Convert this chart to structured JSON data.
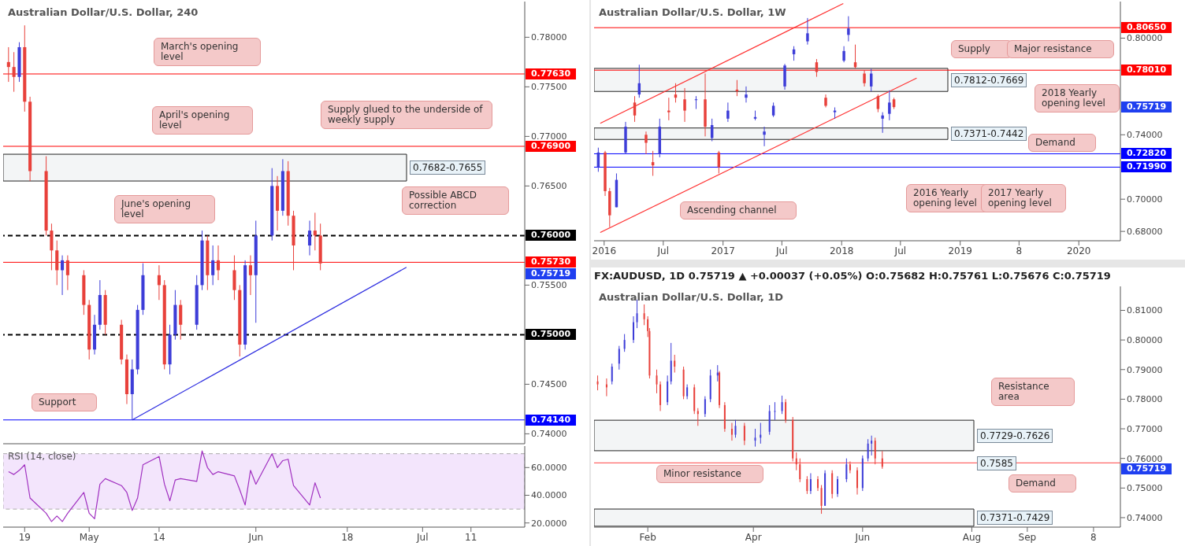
{
  "chart_data": [
    {
      "type": "candlestick",
      "title": "Australian Dollar/U.S. Dollar, 240",
      "tick_labels": "y",
      "x": [
        "2018-04-16",
        "2018-04-17",
        "2018-04-18",
        "2018-04-19",
        "2018-04-20",
        "2018-04-23",
        "2018-04-24",
        "2018-04-25",
        "2018-04-26",
        "2018-04-27",
        "2018-04-30",
        "2018-05-01",
        "2018-05-02",
        "2018-05-03",
        "2018-05-04",
        "2018-05-07",
        "2018-05-08",
        "2018-05-09",
        "2018-05-10",
        "2018-05-11",
        "2018-05-14",
        "2018-05-15",
        "2018-05-16",
        "2018-05-17",
        "2018-05-18",
        "2018-05-21",
        "2018-05-22",
        "2018-05-23",
        "2018-05-24",
        "2018-05-25",
        "2018-05-28",
        "2018-05-29",
        "2018-05-30",
        "2018-05-31",
        "2018-06-01",
        "2018-06-04",
        "2018-06-05",
        "2018-06-06",
        "2018-06-07",
        "2018-06-08",
        "2018-06-11",
        "2018-06-12",
        "2018-06-13"
      ],
      "ohlc": [
        [
          0.7775,
          0.779,
          0.7755,
          0.777
        ],
        [
          0.777,
          0.7785,
          0.7745,
          0.776
        ],
        [
          0.776,
          0.7795,
          0.7755,
          0.779
        ],
        [
          0.779,
          0.7812,
          0.7725,
          0.7735
        ],
        [
          0.7735,
          0.774,
          0.7655,
          0.7665
        ],
        [
          0.7665,
          0.768,
          0.76,
          0.7605
        ],
        [
          0.7605,
          0.7612,
          0.7565,
          0.7585
        ],
        [
          0.7585,
          0.7595,
          0.755,
          0.7565
        ],
        [
          0.7565,
          0.758,
          0.754,
          0.7575
        ],
        [
          0.7575,
          0.758,
          0.7545,
          0.756
        ],
        [
          0.756,
          0.7565,
          0.752,
          0.753
        ],
        [
          0.753,
          0.7535,
          0.7475,
          0.7485
        ],
        [
          0.7485,
          0.752,
          0.748,
          0.751
        ],
        [
          0.751,
          0.7555,
          0.7505,
          0.754
        ],
        [
          0.754,
          0.7545,
          0.75,
          0.751
        ],
        [
          0.751,
          0.7515,
          0.747,
          0.7475
        ],
        [
          0.7475,
          0.748,
          0.743,
          0.744
        ],
        [
          0.744,
          0.7475,
          0.7414,
          0.7465
        ],
        [
          0.7465,
          0.753,
          0.746,
          0.7525
        ],
        [
          0.7525,
          0.7572,
          0.752,
          0.756
        ],
        [
          0.756,
          0.757,
          0.7535,
          0.755
        ],
        [
          0.755,
          0.7555,
          0.7465,
          0.747
        ],
        [
          0.747,
          0.751,
          0.746,
          0.75
        ],
        [
          0.75,
          0.7545,
          0.7495,
          0.753
        ],
        [
          0.753,
          0.7535,
          0.7495,
          0.751
        ],
        [
          0.751,
          0.756,
          0.7505,
          0.755
        ],
        [
          0.755,
          0.7605,
          0.7545,
          0.7595
        ],
        [
          0.7595,
          0.76,
          0.7545,
          0.756
        ],
        [
          0.756,
          0.759,
          0.755,
          0.7575
        ],
        [
          0.7575,
          0.759,
          0.7555,
          0.7565
        ],
        [
          0.7565,
          0.758,
          0.7535,
          0.7545
        ],
        [
          0.7545,
          0.755,
          0.7478,
          0.749
        ],
        [
          0.749,
          0.7575,
          0.7485,
          0.757
        ],
        [
          0.757,
          0.758,
          0.754,
          0.756
        ],
        [
          0.756,
          0.7615,
          0.7512,
          0.76
        ],
        [
          0.76,
          0.7668,
          0.7595,
          0.765
        ],
        [
          0.765,
          0.766,
          0.7605,
          0.7625
        ],
        [
          0.7625,
          0.7677,
          0.762,
          0.7665
        ],
        [
          0.7665,
          0.7675,
          0.761,
          0.762
        ],
        [
          0.762,
          0.7625,
          0.7565,
          0.759
        ],
        [
          0.759,
          0.7615,
          0.758,
          0.7605
        ],
        [
          0.7605,
          0.7623,
          0.7585,
          0.76
        ],
        [
          0.76,
          0.7612,
          0.7565,
          0.75719
        ]
      ],
      "xlim": [
        "2018-04-15",
        "2018-07-21"
      ],
      "ylim": [
        0.739,
        0.7836
      ],
      "yticks": [
        {
          "value": 0.74,
          "label": "0.74000"
        },
        {
          "value": 0.745,
          "label": "0.74500"
        },
        {
          "value": 0.755,
          "label": "0.75500"
        },
        {
          "value": 0.765,
          "label": "0.76500"
        },
        {
          "value": 0.77,
          "label": "0.77000"
        },
        {
          "value": 0.775,
          "label": "0.77500"
        },
        {
          "value": 0.78,
          "label": "0.78000"
        }
      ],
      "series": [
        {
          "type": "line",
          "x": [
            "2018-05-09",
            "2018-06-29"
          ],
          "values": [
            0.7414,
            0.7568
          ],
          "color": "#2f2fe0"
        }
      ],
      "ref_lines": [
        {
          "axis": "y",
          "value": 0.7763,
          "label": "0.77630",
          "color": "#ff0000"
        },
        {
          "axis": "y",
          "value": 0.769,
          "label": "0.76900",
          "color": "#ff0000"
        },
        {
          "axis": "y",
          "value": 0.76,
          "label": "0.76000",
          "color": "#000000",
          "line_style": "dashed"
        },
        {
          "axis": "y",
          "value": 0.7573,
          "label": "0.75730",
          "color": "#ff0000"
        },
        {
          "axis": "y",
          "value": 0.75,
          "label": "0.75000",
          "color": "#000000",
          "line_style": "dashed"
        },
        {
          "axis": "y",
          "value": 0.7414,
          "label": "0.74140",
          "color": "#0000ff"
        }
      ],
      "bands": [
        {
          "axis": "y",
          "from": 0.7655,
          "to": 0.7682,
          "label": "0.7682-0.7655"
        }
      ],
      "annotations": [
        "March's opening level",
        "April's opening level",
        "Supply glued to the underside of weekly supply",
        "June's opening level",
        "Possible ABCD correction",
        "Support",
        "0.75719"
      ]
    },
    {
      "type": "line",
      "title": "RSI (14, close)",
      "marker": "none",
      "color": "#a030c0",
      "x": [
        "2018-04-16",
        "2018-04-17",
        "2018-04-18",
        "2018-04-19",
        "2018-04-20",
        "2018-04-23",
        "2018-04-24",
        "2018-04-25",
        "2018-04-26",
        "2018-04-27",
        "2018-04-30",
        "2018-05-01",
        "2018-05-02",
        "2018-05-03",
        "2018-05-04",
        "2018-05-07",
        "2018-05-08",
        "2018-05-09",
        "2018-05-10",
        "2018-05-11",
        "2018-05-14",
        "2018-05-15",
        "2018-05-16",
        "2018-05-17",
        "2018-05-18",
        "2018-05-21",
        "2018-05-22",
        "2018-05-23",
        "2018-05-24",
        "2018-05-25",
        "2018-05-28",
        "2018-05-29",
        "2018-05-30",
        "2018-05-31",
        "2018-06-01",
        "2018-06-04",
        "2018-06-05",
        "2018-06-06",
        "2018-06-07",
        "2018-06-08",
        "2018-06-11",
        "2018-06-12",
        "2018-06-13"
      ],
      "values": [
        57,
        55,
        58,
        62,
        38,
        27,
        21,
        25,
        21,
        27,
        42,
        27,
        23,
        48,
        52,
        47,
        42,
        29,
        38,
        62,
        68,
        48,
        36,
        51,
        52,
        50,
        72,
        60,
        55,
        57,
        54,
        44,
        33,
        58,
        48,
        70,
        60,
        65,
        66,
        47,
        33,
        49,
        38
      ],
      "xlim": [
        "2018-04-15",
        "2018-07-21"
      ],
      "ylim": [
        17,
        75.5
      ],
      "xticks": [
        {
          "value": "2018-04-19",
          "label": "19"
        },
        {
          "value": "2018-05-01",
          "label": "May"
        },
        {
          "value": "2018-05-14",
          "label": "14"
        },
        {
          "value": "2018-06-01",
          "label": "Jun"
        },
        {
          "value": "2018-06-18",
          "label": "18"
        },
        {
          "value": "2018-07-02",
          "label": "Jul"
        },
        {
          "value": "2018-07-11",
          "label": "11"
        }
      ],
      "yticks": [
        {
          "value": 20,
          "label": "20.0000"
        },
        {
          "value": 40,
          "label": "40.0000"
        },
        {
          "value": 60,
          "label": "60.0000"
        }
      ],
      "bands": [
        {
          "axis": "y",
          "from": 30,
          "to": 70,
          "color": "#f3e5fc"
        }
      ]
    },
    {
      "type": "candlestick",
      "title": "Australian Dollar/U.S. Dollar, 1W",
      "x": [
        "2015-12-14",
        "2016-01-04",
        "2016-01-18",
        "2016-02-08",
        "2016-03-07",
        "2016-04-04",
        "2016-04-18",
        "2016-05-09",
        "2016-05-30",
        "2016-06-20",
        "2016-07-18",
        "2016-08-08",
        "2016-09-05",
        "2016-10-10",
        "2016-11-07",
        "2016-11-28",
        "2016-12-19",
        "2017-01-16",
        "2017-02-13",
        "2017-03-13",
        "2017-04-10",
        "2017-05-08",
        "2017-06-05",
        "2017-07-10",
        "2017-08-07",
        "2017-09-18",
        "2017-10-16",
        "2017-11-13",
        "2017-12-11",
        "2018-01-08",
        "2018-01-22",
        "2018-02-12",
        "2018-03-12",
        "2018-04-02",
        "2018-04-23",
        "2018-05-07",
        "2018-05-28",
        "2018-06-11"
      ],
      "ohlc": [
        [
          0.72,
          0.732,
          0.717,
          0.729
        ],
        [
          0.729,
          0.73,
          0.702,
          0.705
        ],
        [
          0.705,
          0.707,
          0.6827,
          0.69
        ],
        [
          0.695,
          0.716,
          0.695,
          0.712
        ],
        [
          0.729,
          0.748,
          0.728,
          0.745
        ],
        [
          0.76,
          0.764,
          0.748,
          0.752
        ],
        [
          0.765,
          0.7835,
          0.763,
          0.772
        ],
        [
          0.74,
          0.742,
          0.728,
          0.735
        ],
        [
          0.723,
          0.73,
          0.7145,
          0.721
        ],
        [
          0.728,
          0.75,
          0.726,
          0.745
        ],
        [
          0.755,
          0.763,
          0.749,
          0.754
        ],
        [
          0.765,
          0.772,
          0.76,
          0.763
        ],
        [
          0.762,
          0.769,
          0.748,
          0.755
        ],
        [
          0.762,
          0.764,
          0.756,
          0.762
        ],
        [
          0.762,
          0.778,
          0.739,
          0.745
        ],
        [
          0.738,
          0.75,
          0.736,
          0.746
        ],
        [
          0.729,
          0.73,
          0.716,
          0.72
        ],
        [
          0.75,
          0.76,
          0.748,
          0.755
        ],
        [
          0.768,
          0.774,
          0.764,
          0.767
        ],
        [
          0.763,
          0.77,
          0.76,
          0.765
        ],
        [
          0.75,
          0.755,
          0.749,
          0.751
        ],
        [
          0.74,
          0.745,
          0.7329,
          0.742
        ],
        [
          0.752,
          0.76,
          0.751,
          0.758
        ],
        [
          0.77,
          0.784,
          0.768,
          0.783
        ],
        [
          0.79,
          0.795,
          0.786,
          0.793
        ],
        [
          0.798,
          0.8125,
          0.796,
          0.803
        ],
        [
          0.785,
          0.787,
          0.776,
          0.779
        ],
        [
          0.763,
          0.765,
          0.757,
          0.758
        ],
        [
          0.754,
          0.757,
          0.75,
          0.755
        ],
        [
          0.786,
          0.795,
          0.785,
          0.792
        ],
        [
          0.802,
          0.8136,
          0.798,
          0.806
        ],
        [
          0.785,
          0.796,
          0.781,
          0.782
        ],
        [
          0.778,
          0.78,
          0.77,
          0.772
        ],
        [
          0.77,
          0.781,
          0.767,
          0.778
        ],
        [
          0.764,
          0.765,
          0.754,
          0.756
        ],
        [
          0.75,
          0.754,
          0.7412,
          0.752
        ],
        [
          0.753,
          0.7676,
          0.749,
          0.76
        ],
        [
          0.762,
          0.763,
          0.756,
          0.75719
        ]
      ],
      "xlim": [
        "2015-12-01",
        "2020-05-08"
      ],
      "ylim": [
        0.6742,
        0.8227
      ],
      "xticks": [
        {
          "value": "2016-01-01",
          "label": "2016"
        },
        {
          "value": "2016-07-01",
          "label": "Jul"
        },
        {
          "value": "2017-01-01",
          "label": "2017"
        },
        {
          "value": "2017-07-01",
          "label": "Jul"
        },
        {
          "value": "2018-01-01",
          "label": "2018"
        },
        {
          "value": "2018-07-01",
          "label": "Jul"
        },
        {
          "value": "2019-01-01",
          "label": "2019"
        },
        {
          "value": "2019-07-01",
          "label": "8"
        },
        {
          "value": "2020-01-01",
          "label": "2020"
        }
      ],
      "yticks": [
        {
          "value": 0.68,
          "label": "0.68000"
        },
        {
          "value": 0.7,
          "label": "0.70000"
        },
        {
          "value": 0.74,
          "label": "0.74000"
        },
        {
          "value": 0.8,
          "label": "0.80000"
        }
      ],
      "series": [
        {
          "type": "line",
          "x": [
            "2015-12-20",
            "2018-08-20"
          ],
          "values": [
            0.6793,
            0.7752
          ],
          "color": "#ff3333"
        },
        {
          "type": "line",
          "x": [
            "2015-12-20",
            "2018-01-06"
          ],
          "values": [
            0.7471,
            0.8215
          ],
          "color": "#ff3333"
        }
      ],
      "ref_lines": [
        {
          "axis": "y",
          "value": 0.8065,
          "label": "0.80650",
          "color": "#ff0000"
        },
        {
          "axis": "y",
          "value": 0.7801,
          "label": "0.78010",
          "color": "#ff0000"
        },
        {
          "axis": "y",
          "value": 0.7282,
          "label": "0.72820",
          "color": "#0000ff"
        },
        {
          "axis": "y",
          "value": 0.7199,
          "label": "0.71990",
          "color": "#0000ff"
        }
      ],
      "bands": [
        {
          "axis": "y",
          "from": 0.7669,
          "to": 0.7812,
          "label": "0.7812-0.7669"
        },
        {
          "axis": "y",
          "from": 0.7371,
          "to": 0.7442,
          "label": "0.7371-0.7442"
        }
      ],
      "annotations": [
        "Supply",
        "Major resistance",
        "2018 Yearly opening level",
        "Demand",
        "2016 Yearly opening level",
        "2017 Yearly opening level",
        "Ascending channel",
        "0.75719"
      ]
    },
    {
      "type": "candlestick",
      "title": "Australian Dollar/U.S. Dollar, 1D",
      "subtitle": "FX:AUDUSD, 1D  0.75719 ▲ +0.00037 (+0.05%) O:0.75682 H:0.75761 L:0.75676 C:0.75719",
      "x": [
        "2018-01-04",
        "2018-01-09",
        "2018-01-12",
        "2018-01-16",
        "2018-01-19",
        "2018-01-24",
        "2018-01-26",
        "2018-01-30",
        "2018-02-01",
        "2018-02-02",
        "2018-02-06",
        "2018-02-08",
        "2018-02-12",
        "2018-02-14",
        "2018-02-16",
        "2018-02-21",
        "2018-02-23",
        "2018-02-27",
        "2018-03-01",
        "2018-03-05",
        "2018-03-08",
        "2018-03-12",
        "2018-03-13",
        "2018-03-16",
        "2018-03-20",
        "2018-03-22",
        "2018-03-27",
        "2018-04-02",
        "2018-04-05",
        "2018-04-10",
        "2018-04-13",
        "2018-04-17",
        "2018-04-19",
        "2018-04-23",
        "2018-04-25",
        "2018-04-27",
        "2018-05-01",
        "2018-05-03",
        "2018-05-07",
        "2018-05-09",
        "2018-05-11",
        "2018-05-15",
        "2018-05-18",
        "2018-05-23",
        "2018-05-25",
        "2018-05-29",
        "2018-06-01",
        "2018-06-04",
        "2018-06-06",
        "2018-06-08",
        "2018-06-12"
      ],
      "ohlc": [
        [
          0.786,
          0.788,
          0.783,
          0.785
        ],
        [
          0.785,
          0.787,
          0.781,
          0.784
        ],
        [
          0.786,
          0.792,
          0.785,
          0.791
        ],
        [
          0.792,
          0.798,
          0.79,
          0.797
        ],
        [
          0.797,
          0.802,
          0.796,
          0.8
        ],
        [
          0.8,
          0.808,
          0.799,
          0.806
        ],
        [
          0.806,
          0.8136,
          0.804,
          0.809
        ],
        [
          0.809,
          0.812,
          0.805,
          0.807
        ],
        [
          0.807,
          0.808,
          0.801,
          0.803
        ],
        [
          0.803,
          0.804,
          0.787,
          0.788
        ],
        [
          0.788,
          0.79,
          0.782,
          0.785
        ],
        [
          0.785,
          0.786,
          0.776,
          0.778
        ],
        [
          0.779,
          0.788,
          0.778,
          0.786
        ],
        [
          0.786,
          0.799,
          0.785,
          0.793
        ],
        [
          0.793,
          0.795,
          0.789,
          0.791
        ],
        [
          0.79,
          0.791,
          0.78,
          0.781
        ],
        [
          0.781,
          0.785,
          0.78,
          0.784
        ],
        [
          0.784,
          0.785,
          0.775,
          0.776
        ],
        [
          0.776,
          0.777,
          0.771,
          0.775
        ],
        [
          0.775,
          0.781,
          0.774,
          0.78
        ],
        [
          0.78,
          0.79,
          0.779,
          0.788
        ],
        [
          0.788,
          0.7915,
          0.786,
          0.789
        ],
        [
          0.789,
          0.7895,
          0.777,
          0.778
        ],
        [
          0.778,
          0.779,
          0.769,
          0.77
        ],
        [
          0.77,
          0.772,
          0.766,
          0.768
        ],
        [
          0.768,
          0.773,
          0.767,
          0.771
        ],
        [
          0.771,
          0.772,
          0.7645,
          0.766
        ],
        [
          0.766,
          0.77,
          0.764,
          0.767
        ],
        [
          0.767,
          0.772,
          0.765,
          0.768
        ],
        [
          0.769,
          0.778,
          0.768,
          0.776
        ],
        [
          0.776,
          0.779,
          0.773,
          0.776
        ],
        [
          0.776,
          0.7812,
          0.775,
          0.779
        ],
        [
          0.779,
          0.78,
          0.772,
          0.773
        ],
        [
          0.773,
          0.774,
          0.759,
          0.76
        ],
        [
          0.76,
          0.762,
          0.756,
          0.758
        ],
        [
          0.758,
          0.76,
          0.752,
          0.753
        ],
        [
          0.753,
          0.754,
          0.748,
          0.749
        ],
        [
          0.749,
          0.755,
          0.748,
          0.753
        ],
        [
          0.753,
          0.754,
          0.749,
          0.75
        ],
        [
          0.75,
          0.751,
          0.7413,
          0.744
        ],
        [
          0.744,
          0.756,
          0.744,
          0.755
        ],
        [
          0.755,
          0.756,
          0.7465,
          0.748
        ],
        [
          0.748,
          0.754,
          0.747,
          0.753
        ],
        [
          0.753,
          0.76,
          0.752,
          0.758
        ],
        [
          0.758,
          0.759,
          0.755,
          0.756
        ],
        [
          0.756,
          0.757,
          0.7478,
          0.75
        ],
        [
          0.75,
          0.761,
          0.749,
          0.76
        ],
        [
          0.76,
          0.7665,
          0.759,
          0.765
        ],
        [
          0.765,
          0.7677,
          0.761,
          0.766
        ],
        [
          0.766,
          0.767,
          0.758,
          0.76
        ],
        [
          0.76,
          0.7625,
          0.7565,
          0.75719
        ]
      ],
      "xlim": [
        "2018-01-02",
        "2018-10-23"
      ],
      "ylim": [
        0.7368,
        0.8181
      ],
      "xticks": [
        {
          "value": "2018-02-01",
          "label": "Feb"
        },
        {
          "value": "2018-04-01",
          "label": "Apr"
        },
        {
          "value": "2018-06-01",
          "label": "Jun"
        },
        {
          "value": "2018-08-01",
          "label": "Aug"
        },
        {
          "value": "2018-09-01",
          "label": "Sep"
        },
        {
          "value": "2018-10-08",
          "label": "8"
        }
      ],
      "yticks": [
        {
          "value": 0.74,
          "label": "0.74000"
        },
        {
          "value": 0.75,
          "label": "0.75000"
        },
        {
          "value": 0.76,
          "label": "0.76000"
        },
        {
          "value": 0.77,
          "label": "0.77000"
        },
        {
          "value": 0.78,
          "label": "0.78000"
        },
        {
          "value": 0.79,
          "label": "0.79000"
        },
        {
          "value": 0.8,
          "label": "0.80000"
        },
        {
          "value": 0.81,
          "label": "0.81000"
        }
      ],
      "ref_lines": [
        {
          "axis": "y",
          "value": 0.7585,
          "label": "0.7585",
          "color": "#ff4444"
        }
      ],
      "bands": [
        {
          "axis": "y",
          "from": 0.7626,
          "to": 0.7729,
          "label": "0.7729-0.7626"
        },
        {
          "axis": "y",
          "from": 0.7371,
          "to": 0.7429,
          "label": "0.7371-0.7429"
        }
      ],
      "annotations": [
        "Resistance area",
        "Minor resistance",
        "Demand",
        "0.75719"
      ]
    }
  ]
}
